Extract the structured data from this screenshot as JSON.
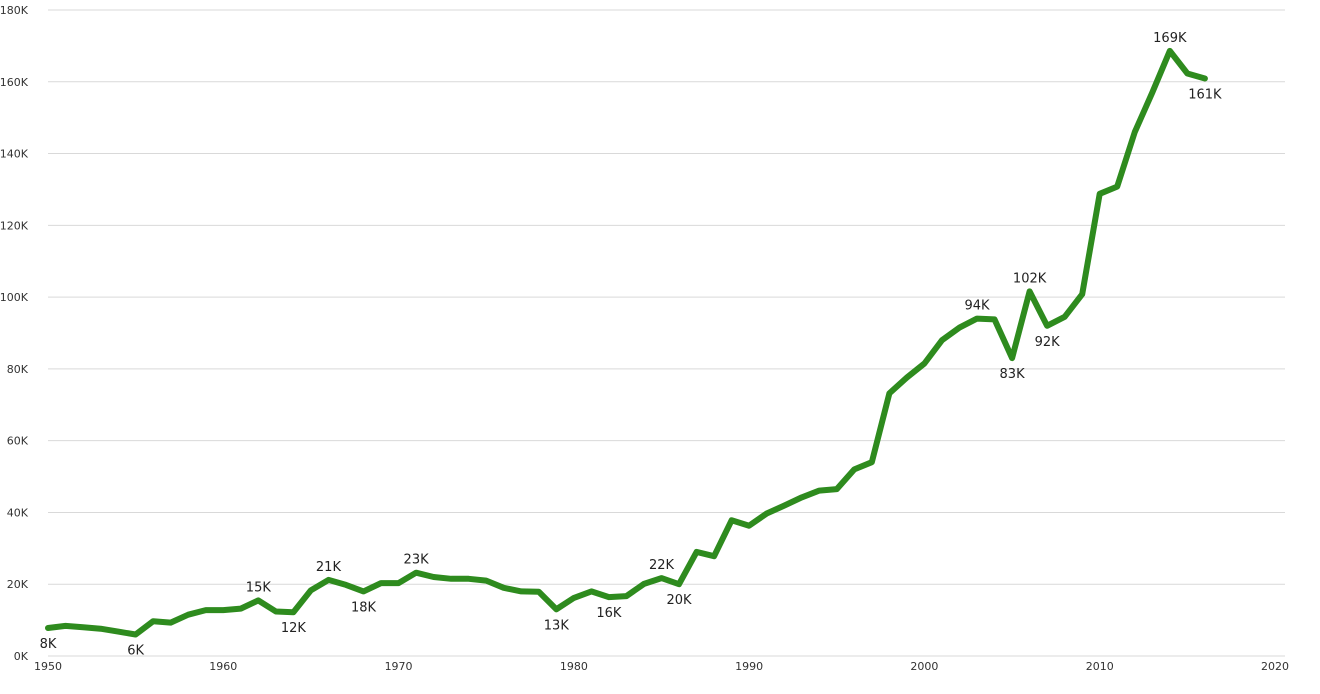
{
  "chart_data": {
    "type": "line",
    "x": [
      1950,
      1951,
      1952,
      1953,
      1954,
      1955,
      1956,
      1957,
      1958,
      1959,
      1960,
      1961,
      1962,
      1963,
      1964,
      1965,
      1966,
      1967,
      1968,
      1969,
      1970,
      1971,
      1972,
      1973,
      1974,
      1975,
      1976,
      1977,
      1978,
      1979,
      1980,
      1981,
      1982,
      1983,
      1984,
      1985,
      1986,
      1987,
      1988,
      1989,
      1990,
      1991,
      1992,
      1993,
      1994,
      1995,
      1996,
      1997,
      1998,
      1999,
      2000,
      2001,
      2002,
      2003,
      2004,
      2005,
      2006,
      2007,
      2008,
      2009,
      2010,
      2011,
      2012,
      2013,
      2014,
      2015,
      2016
    ],
    "series": [
      {
        "values": [
          7.8,
          8.4,
          8.0,
          7.6,
          6.8,
          6.0,
          9.7,
          9.3,
          11.5,
          12.8,
          12.8,
          13.2,
          15.5,
          12.4,
          12.2,
          18.3,
          21.2,
          19.8,
          18.0,
          20.3,
          20.3,
          23.2,
          22.0,
          21.5,
          21.5,
          21.0,
          19.0,
          18.0,
          17.9,
          13.0,
          16.2,
          18.0,
          16.4,
          16.7,
          20.1,
          21.7,
          20.0,
          29.0,
          27.8,
          37.8,
          36.3,
          39.7,
          41.9,
          44.2,
          46.1,
          46.5,
          52.0,
          54.0,
          73.2,
          77.6,
          81.5,
          88.0,
          91.5,
          94.0,
          93.8,
          83.0,
          101.6,
          92.0,
          94.5,
          100.8,
          128.8,
          130.8,
          146.0,
          157.0,
          168.6,
          162.3,
          160.9
        ],
        "color": "#2e8b1e"
      }
    ],
    "data_labels": [
      {
        "x": 1950,
        "y": 7.8,
        "text": "8K",
        "pos": "below"
      },
      {
        "x": 1955,
        "y": 6.0,
        "text": "6K",
        "pos": "below"
      },
      {
        "x": 1962,
        "y": 15.5,
        "text": "15K",
        "pos": "above"
      },
      {
        "x": 1964,
        "y": 12.2,
        "text": "12K",
        "pos": "below"
      },
      {
        "x": 1966,
        "y": 21.2,
        "text": "21K",
        "pos": "above"
      },
      {
        "x": 1968,
        "y": 18.0,
        "text": "18K",
        "pos": "below"
      },
      {
        "x": 1971,
        "y": 23.2,
        "text": "23K",
        "pos": "above"
      },
      {
        "x": 1979,
        "y": 13.0,
        "text": "13K",
        "pos": "below"
      },
      {
        "x": 1982,
        "y": 16.4,
        "text": "16K",
        "pos": "below"
      },
      {
        "x": 1985,
        "y": 21.7,
        "text": "22K",
        "pos": "above"
      },
      {
        "x": 1986,
        "y": 20.0,
        "text": "20K",
        "pos": "below"
      },
      {
        "x": 2003,
        "y": 94.0,
        "text": "94K",
        "pos": "above"
      },
      {
        "x": 2005,
        "y": 83.0,
        "text": "83K",
        "pos": "below"
      },
      {
        "x": 2006,
        "y": 101.6,
        "text": "102K",
        "pos": "above"
      },
      {
        "x": 2007,
        "y": 92.0,
        "text": "92K",
        "pos": "below"
      },
      {
        "x": 2014,
        "y": 168.6,
        "text": "169K",
        "pos": "above"
      },
      {
        "x": 2016,
        "y": 160.9,
        "text": "161K",
        "pos": "below"
      }
    ],
    "xlim": [
      1950,
      2020
    ],
    "ylim": [
      0,
      180
    ],
    "x_ticks": [
      1950,
      1960,
      1970,
      1980,
      1990,
      2000,
      2010,
      2020
    ],
    "y_ticks": [
      {
        "value": 0,
        "label": "0K"
      },
      {
        "value": 20,
        "label": "20K"
      },
      {
        "value": 40,
        "label": "40K"
      },
      {
        "value": 60,
        "label": "60K"
      },
      {
        "value": 80,
        "label": "80K"
      },
      {
        "value": 100,
        "label": "100K"
      },
      {
        "value": 120,
        "label": "120K"
      },
      {
        "value": 140,
        "label": "140K"
      },
      {
        "value": 160,
        "label": "160K"
      },
      {
        "value": 180,
        "label": "180K"
      }
    ],
    "grid": true,
    "legend": "none",
    "title": "",
    "xlabel": "",
    "ylabel": ""
  }
}
